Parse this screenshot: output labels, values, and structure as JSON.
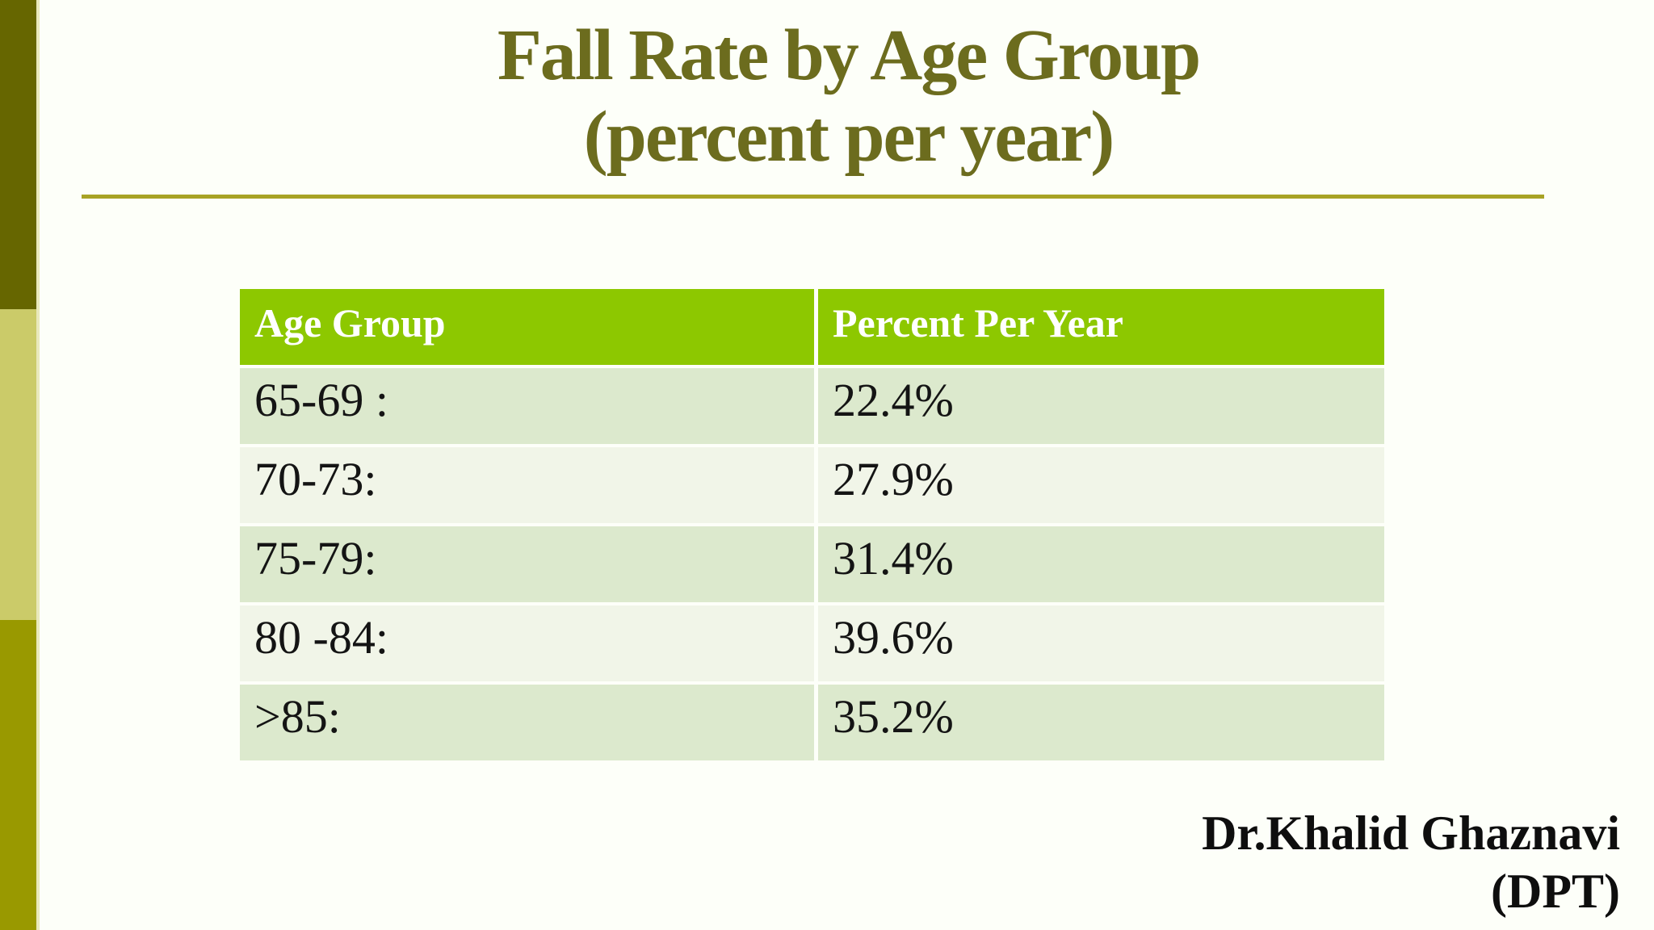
{
  "slide": {
    "title_line1": "Fall Rate by Age Group",
    "title_line2": "(percent per year)",
    "footer_line1": "Dr.Khalid Ghaznavi",
    "footer_line2": "(DPT)"
  },
  "table": {
    "columns": {
      "age_group": "Age Group",
      "percent": "Percent Per Year"
    },
    "rows": [
      {
        "age_group": "65-69 :",
        "percent": "22.4%"
      },
      {
        "age_group": "70-73:",
        "percent": "27.9%"
      },
      {
        "age_group": "75-79:",
        "percent": "31.4%"
      },
      {
        "age_group": "80 -84:",
        "percent": "39.6%"
      },
      {
        "age_group": ">85:",
        "percent": "35.2%"
      }
    ]
  },
  "chart_data": {
    "type": "table",
    "title": "Fall Rate by Age Group (percent per year)",
    "columns": [
      "Age Group",
      "Percent Per Year"
    ],
    "rows": [
      [
        "65-69 :",
        "22.4%"
      ],
      [
        "70-73:",
        "27.9%"
      ],
      [
        "75-79:",
        "31.4%"
      ],
      [
        "80 -84:",
        "39.6%"
      ],
      [
        ">85:",
        "35.2%"
      ]
    ],
    "values_percent": [
      22.4,
      27.9,
      31.4,
      39.6,
      35.2
    ]
  },
  "colors": {
    "bg": "#FDFFF9",
    "bar-dark": "#666600",
    "bar-light": "#CBCB69",
    "bar-olive": "#999900",
    "bar-edge": "#E9E9BC",
    "title-color": "#6C6C1E",
    "rule-color": "#A8A326",
    "header-bg": "#8DC800",
    "header-text": "#FFFFFF",
    "row-odd": "#DCE9CD",
    "row-even": "#F1F5E8",
    "cell-text": "#141414",
    "footer-text": "#0E0E0E"
  }
}
